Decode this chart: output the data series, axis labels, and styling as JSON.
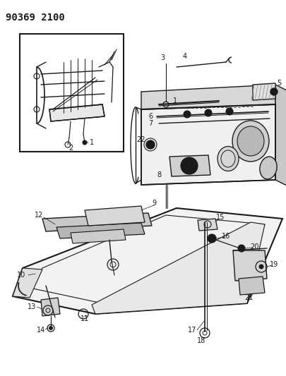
{
  "title": "90369 2100",
  "bg_color": "#ffffff",
  "line_color": "#1a1a1a",
  "title_fontsize": 10,
  "title_fontweight": "bold",
  "figsize": [
    4.06,
    5.33
  ],
  "dpi": 100
}
